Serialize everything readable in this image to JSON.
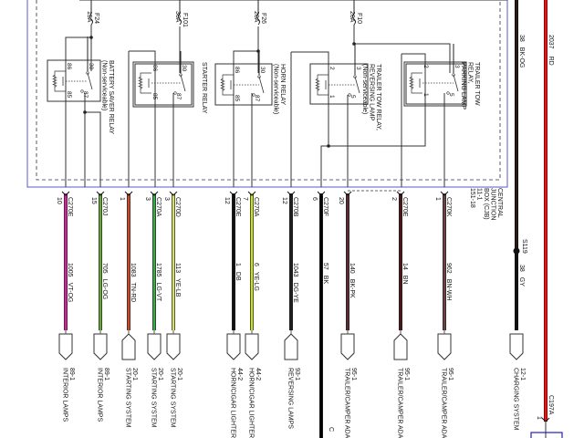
{
  "fuses": [
    {
      "id": "F24",
      "rating": "15A"
    },
    {
      "id": "F101",
      "rating": "30A"
    },
    {
      "id": "F26",
      "rating": "20A"
    },
    {
      "id": "F10",
      "rating": "20A"
    }
  ],
  "relays": [
    {
      "name": [
        "BATTERY SAVER RELAY",
        "(Non-serviceable)"
      ],
      "pins": [
        "86",
        "85",
        "30",
        "87"
      ]
    },
    {
      "name": [
        "STARTER RELAY"
      ],
      "pins": [
        "86",
        "85",
        "30",
        "87"
      ]
    },
    {
      "name": [
        "HORN RELAY",
        "(Non-serviceable)"
      ],
      "pins": [
        "86",
        "85",
        "30",
        "87"
      ]
    },
    {
      "name": [
        "TRAILER TOW RELAY,",
        "REVERSING LAMP",
        "(Non-serviceable)"
      ],
      "pins": [
        "2",
        "1",
        "3",
        "5"
      ]
    },
    {
      "name": [
        "TRAILER TOW",
        "RELAY,",
        "PARKING LAMP"
      ],
      "pins": [
        "2",
        "1",
        "3",
        "5"
      ]
    }
  ],
  "junction_box": {
    "label": [
      "CENTRAL",
      "JUNCTION",
      "BOX (CJB)",
      "11-1",
      "151-18"
    ]
  },
  "wires": [
    {
      "connector": "C270E",
      "pin": "10",
      "circuit": "1005",
      "color_code": "VT-OG",
      "color": "#d2279b",
      "dest": [
        "89-1",
        "INTERIOR LAMPS"
      ],
      "end": "down"
    },
    {
      "connector": "C270J",
      "pin": "15",
      "circuit": "705",
      "color_code": "LG-OG",
      "color": "#68a637",
      "dest": [
        "89-1",
        "INTERIOR LAMPS"
      ],
      "end": "down"
    },
    {
      "connector": "",
      "pin": "1",
      "circuit": "1083",
      "color_code": "TN-RD",
      "color": "#c44e2c",
      "dest": [
        "20-1",
        "STARTING SYSTEM"
      ],
      "end": "up"
    },
    {
      "connector": "C270A",
      "pin": "3",
      "circuit": "1785",
      "color_code": "LG-VT",
      "color": "#3caa48",
      "dest": [
        "20-1",
        "STARTING SYSTEM"
      ],
      "end": "down"
    },
    {
      "connector": "C270D",
      "pin": "3",
      "circuit": "113",
      "color_code": "YE-LB",
      "color": "#d6e06c",
      "dest": [
        "20-1",
        "STARTING SYSTEM"
      ],
      "end": "down"
    },
    {
      "connector": "C270E",
      "pin": "12",
      "circuit": "1",
      "color_code": "DB",
      "color": "#111111",
      "dest": [
        "44-2",
        "HORN/CIGAR LIGHTER"
      ],
      "end": "down"
    },
    {
      "connector": "C270A",
      "pin": "7",
      "circuit": "6",
      "color_code": "YE-LG",
      "color": "#c6df2a",
      "dest": [
        "44-2",
        "HORN/CIGAR LIGHTER"
      ],
      "end": "down"
    },
    {
      "connector": "C270B",
      "pin": "12",
      "circuit": "1043",
      "color_code": "DG-YE",
      "color": "#1e1e1e",
      "dest": [
        "93-1",
        "REVERSING LAMPS"
      ],
      "end": "up"
    },
    {
      "connector": "C270F",
      "pin": "6",
      "circuit": "57",
      "color_code": "BK",
      "color": "#000000",
      "dest": [
        "",
        "C"
      ],
      "end": "none"
    },
    {
      "connector": "",
      "pin": "20",
      "circuit": "140",
      "color_code": "BK-PK",
      "color": "#5a2c32",
      "dest": [
        "95-1",
        "TRAILER/CAMPER ADAPTER"
      ],
      "end": "down"
    },
    {
      "connector": "C270E",
      "pin": "2",
      "circuit": "14",
      "color_code": "BN",
      "color": "#4a1616",
      "dest": [
        "95-1",
        "TRAILER/CAMPER ADAPTER"
      ],
      "end": "up"
    },
    {
      "connector": "C270K",
      "pin": "1",
      "circuit": "962",
      "color_code": "BN-WH",
      "color": "#6b4242",
      "dest": [
        "95-1",
        "TRAILER/CAMPER ADAPTER"
      ],
      "end": "down"
    }
  ],
  "ground_wire": {
    "top_circuit": "38",
    "top_color_code": "BK-OG",
    "splice": "S119",
    "bottom_circuit": "38",
    "bottom_color_code": "GY",
    "color": "#2a1a14",
    "dest": [
      "12-1",
      "CHARGING SYSTEM"
    ]
  },
  "power_wire": {
    "circuit": "2037",
    "color_code": "RD",
    "color": "#e01818",
    "connector": "C197A",
    "pin": "1"
  },
  "colors": {
    "junction_box_border": "#5a5ac8",
    "connector_box": "#2020c0"
  }
}
